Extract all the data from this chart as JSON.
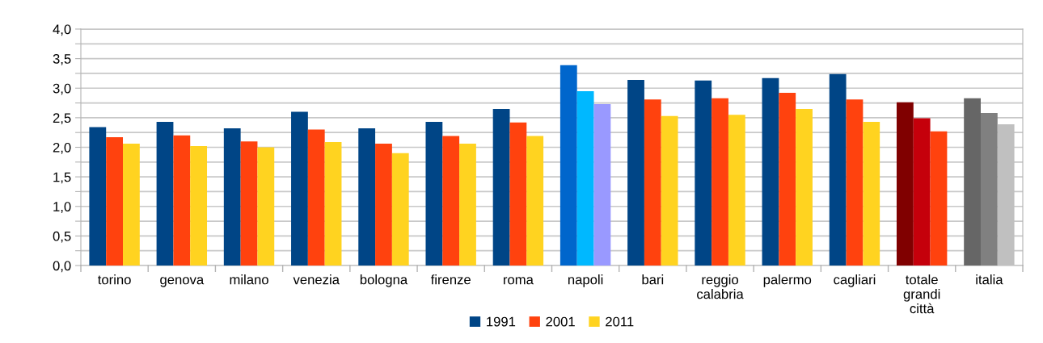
{
  "chart_data": {
    "type": "bar",
    "categories": [
      "torino",
      "genova",
      "milano",
      "venezia",
      "bologna",
      "firenze",
      "roma",
      "napoli",
      "bari",
      "reggio\ncalabria",
      "palermo",
      "cagliari",
      "totale\ngrandi\ncittà",
      "italia"
    ],
    "series": [
      {
        "name": "1991",
        "color": "#004586",
        "colors": [
          "#004586",
          "#004586",
          "#004586",
          "#004586",
          "#004586",
          "#004586",
          "#004586",
          "#0066cc",
          "#004586",
          "#004586",
          "#004586",
          "#004586",
          "#800000",
          "#666666"
        ],
        "values": [
          2.34,
          2.43,
          2.32,
          2.6,
          2.32,
          2.43,
          2.65,
          3.39,
          3.14,
          3.13,
          3.17,
          3.24,
          2.76,
          2.83
        ]
      },
      {
        "name": "2001",
        "color": "#ff420e",
        "colors": [
          "#ff420e",
          "#ff420e",
          "#ff420e",
          "#ff420e",
          "#ff420e",
          "#ff420e",
          "#ff420e",
          "#00b8ff",
          "#ff420e",
          "#ff420e",
          "#ff420e",
          "#ff420e",
          "#c5000b",
          "#808080"
        ],
        "values": [
          2.17,
          2.2,
          2.1,
          2.3,
          2.06,
          2.19,
          2.42,
          2.95,
          2.81,
          2.83,
          2.92,
          2.81,
          2.49,
          2.58
        ]
      },
      {
        "name": "2011",
        "color": "#ffd320",
        "colors": [
          "#ffd320",
          "#ffd320",
          "#ffd320",
          "#ffd320",
          "#ffd320",
          "#ffd320",
          "#ffd320",
          "#9999ff",
          "#ffd320",
          "#ffd320",
          "#ffd320",
          "#ffd320",
          "#ff420e",
          "#c0c0c0"
        ],
        "values": [
          2.06,
          2.02,
          2.0,
          2.09,
          1.9,
          2.06,
          2.19,
          2.73,
          2.53,
          2.55,
          2.65,
          2.43,
          2.27,
          2.39
        ]
      }
    ],
    "ylim": [
      0,
      4
    ],
    "yticks": [
      {
        "value": 0,
        "label": "0,0"
      },
      {
        "value": 0.25,
        "label": null
      },
      {
        "value": 0.5,
        "label": "0,5"
      },
      {
        "value": 0.75,
        "label": null
      },
      {
        "value": 1,
        "label": "1,0"
      },
      {
        "value": 1.25,
        "label": null
      },
      {
        "value": 1.5,
        "label": "1,5"
      },
      {
        "value": 1.75,
        "label": null
      },
      {
        "value": 2,
        "label": "2,0"
      },
      {
        "value": 2.25,
        "label": null
      },
      {
        "value": 2.5,
        "label": "2,5"
      },
      {
        "value": 2.75,
        "label": null
      },
      {
        "value": 3,
        "label": "3,0"
      },
      {
        "value": 3.25,
        "label": null
      },
      {
        "value": 3.5,
        "label": "3,5"
      },
      {
        "value": 3.75,
        "label": null
      },
      {
        "value": 4,
        "label": "4,0"
      }
    ],
    "grid": "y",
    "legend": "bottom"
  }
}
